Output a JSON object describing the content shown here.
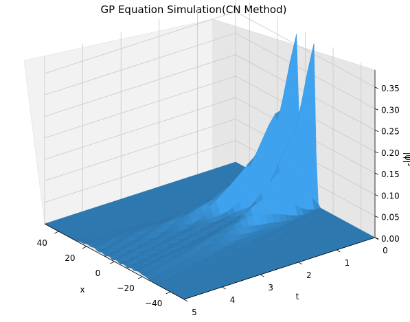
{
  "chart_data": {
    "type": "surface",
    "title": "GP Equation Simulation(CN Method)",
    "xlabel": "x",
    "ylabel": "t",
    "zlabel": "|ψ|²",
    "x_ticks": [
      "40",
      "20",
      "0",
      "−20",
      "−40"
    ],
    "x_tick_values": [
      40,
      20,
      0,
      -20,
      -40
    ],
    "t_ticks": [
      "0",
      "1",
      "2",
      "3",
      "4",
      "5"
    ],
    "t_tick_values": [
      0,
      1,
      2,
      3,
      4,
      5
    ],
    "z_ticks": [
      "0.00",
      "0.05",
      "0.10",
      "0.15",
      "0.20",
      "0.25",
      "0.30",
      "0.35"
    ],
    "z_tick_values": [
      0,
      0.05,
      0.1,
      0.15,
      0.2,
      0.25,
      0.3,
      0.35
    ],
    "xlim": [
      -50,
      50
    ],
    "tlim": [
      0,
      5
    ],
    "zlim": [
      0,
      0.39
    ],
    "grid": true,
    "surface_color": "#2e78b0",
    "peaks": [
      {
        "x": 6,
        "t": 0,
        "z": 0.38
      },
      {
        "x": -6,
        "t": 0,
        "z": 0.38
      }
    ]
  }
}
